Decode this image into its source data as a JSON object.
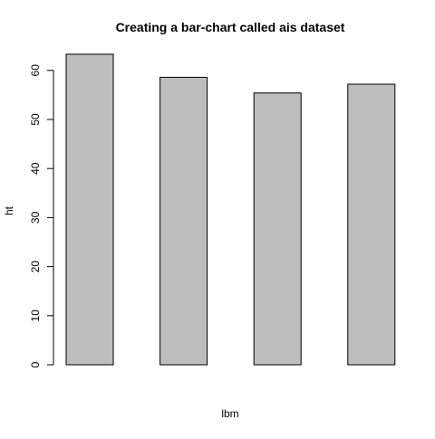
{
  "chart_data": {
    "type": "bar",
    "title": "Creating a bar-chart called ais dataset",
    "xlabel": "lbm",
    "ylabel": "ht",
    "categories": [
      "",
      "",
      "",
      ""
    ],
    "values": [
      63.3,
      58.6,
      55.4,
      57.2
    ],
    "ylim": [
      0,
      65
    ],
    "yticks": [
      0,
      10,
      20,
      30,
      40,
      50,
      60
    ],
    "grid": false,
    "legend": "none",
    "bar_color": "#bebebe",
    "bar_border_color": "#000000"
  }
}
